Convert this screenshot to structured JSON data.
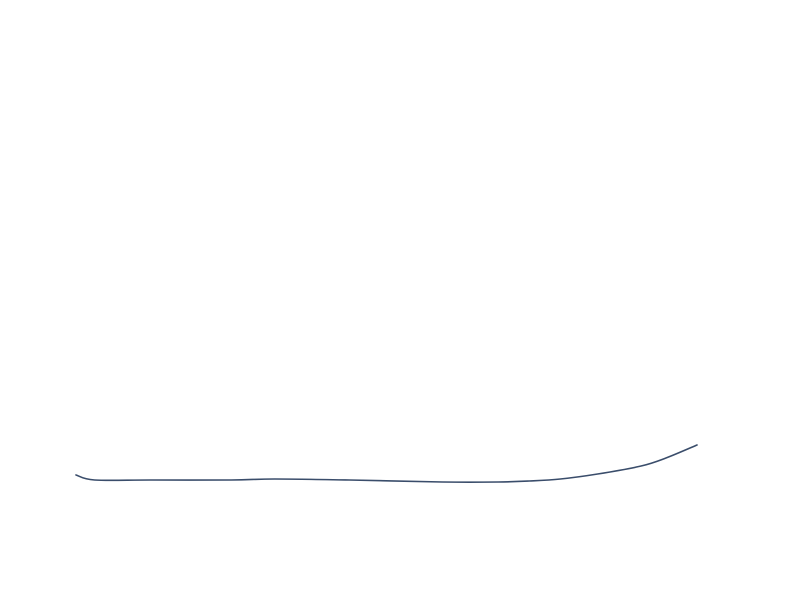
{
  "chart_data": {
    "type": "line",
    "title": "",
    "xlabel": "",
    "ylabel": "",
    "axes_visible": false,
    "grid": false,
    "xlim": [
      0,
      100
    ],
    "ylim": [
      0,
      100
    ],
    "series": [
      {
        "color": "#3a4d6b",
        "x": [
          0,
          3,
          12,
          25,
          32,
          44,
          59,
          68,
          73,
          78,
          84,
          91,
          95,
          100
        ],
        "y": [
          15,
          10,
          10,
          10,
          11,
          10,
          8,
          8,
          9,
          11,
          16,
          24,
          32,
          45
        ]
      }
    ]
  }
}
